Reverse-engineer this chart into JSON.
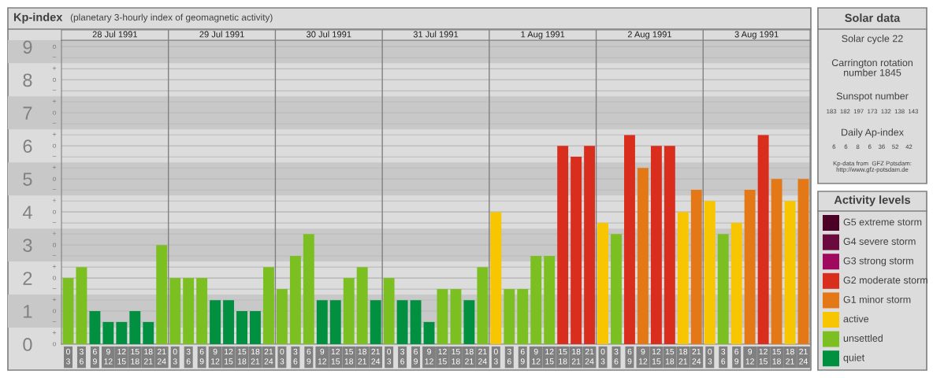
{
  "chart_data": [
    {
      "type": "bar",
      "title": "Kp-index",
      "subtitle": "(planetary 3-hourly index of geomagnetic activity)",
      "categories": [
        "0\n3",
        "3\n6",
        "6\n9",
        "9\n12",
        "12\n15",
        "15\n18",
        "18\n21",
        "21\n24",
        "0\n3",
        "3\n6",
        "6\n9",
        "9\n12",
        "12\n15",
        "15\n18",
        "18\n21",
        "21\n24",
        "0\n3",
        "3\n6",
        "6\n9",
        "9\n12",
        "12\n15",
        "15\n18",
        "18\n21",
        "21\n24",
        "0\n3",
        "3\n6",
        "6\n9",
        "9\n12",
        "12\n15",
        "15\n18",
        "18\n21",
        "21\n24",
        "0\n3",
        "3\n6",
        "6\n9",
        "9\n12",
        "12\n15",
        "15\n18",
        "18\n21",
        "21\n24",
        "0\n3",
        "3\n6",
        "6\n9",
        "9\n12",
        "12\n15",
        "15\n18",
        "18\n21",
        "21\n24",
        "0\n3",
        "3\n6",
        "6\n9",
        "9\n12",
        "12\n15",
        "15\n18",
        "18\n21",
        "21\n24"
      ],
      "series": [
        {
          "name": "G5 extreme storm",
          "color": "#4d0026",
          "values": [
            null,
            null,
            null,
            null,
            null,
            null,
            null,
            null,
            null,
            null,
            null,
            null,
            null,
            null,
            null,
            null,
            null,
            null,
            null,
            null,
            null,
            null,
            null,
            null,
            null,
            null,
            null,
            null,
            null,
            null,
            null,
            null,
            null,
            null,
            null,
            null,
            null,
            null,
            null,
            null,
            null,
            null,
            null,
            null,
            null,
            null,
            null,
            null,
            null,
            null,
            null,
            null,
            null,
            null,
            null,
            null
          ]
        },
        {
          "name": "G4 severe storm",
          "color": "#6b0a3d",
          "values": [
            null,
            null,
            null,
            null,
            null,
            null,
            null,
            null,
            null,
            null,
            null,
            null,
            null,
            null,
            null,
            null,
            null,
            null,
            null,
            null,
            null,
            null,
            null,
            null,
            null,
            null,
            null,
            null,
            null,
            null,
            null,
            null,
            null,
            null,
            null,
            null,
            null,
            null,
            null,
            null,
            null,
            null,
            null,
            null,
            null,
            null,
            null,
            null,
            null,
            null,
            null,
            null,
            null,
            null,
            null,
            null
          ]
        },
        {
          "name": "G3 strong storm",
          "color": "#a00a5e",
          "values": [
            null,
            null,
            null,
            null,
            null,
            null,
            null,
            null,
            null,
            null,
            null,
            null,
            null,
            null,
            null,
            null,
            null,
            null,
            null,
            null,
            null,
            null,
            null,
            null,
            null,
            null,
            null,
            null,
            null,
            null,
            null,
            null,
            null,
            null,
            null,
            null,
            null,
            null,
            null,
            null,
            null,
            null,
            null,
            null,
            null,
            null,
            null,
            null,
            null,
            null,
            null,
            null,
            null,
            null,
            null,
            null
          ]
        },
        {
          "name": "G2 moderate storm",
          "color": "#d92d1e",
          "values": [
            null,
            null,
            null,
            null,
            null,
            null,
            null,
            null,
            null,
            null,
            null,
            null,
            null,
            null,
            null,
            null,
            null,
            null,
            null,
            null,
            null,
            null,
            null,
            null,
            null,
            null,
            null,
            null,
            null,
            null,
            null,
            null,
            null,
            null,
            null,
            null,
            null,
            6,
            5.67,
            6,
            null,
            null,
            6.33,
            null,
            6,
            6,
            null,
            null,
            null,
            null,
            null,
            null,
            6.33,
            null,
            null,
            null
          ]
        },
        {
          "name": "G1 minor storm",
          "color": "#e47817",
          "values": [
            null,
            null,
            null,
            null,
            null,
            null,
            null,
            null,
            null,
            null,
            null,
            null,
            null,
            null,
            null,
            null,
            null,
            null,
            null,
            null,
            null,
            null,
            null,
            null,
            null,
            null,
            null,
            null,
            null,
            null,
            null,
            null,
            null,
            null,
            null,
            null,
            null,
            null,
            null,
            null,
            null,
            null,
            null,
            5.33,
            null,
            null,
            null,
            4.67,
            null,
            null,
            null,
            4.67,
            null,
            5,
            null,
            5
          ]
        },
        {
          "name": "active",
          "color": "#f8c600",
          "values": [
            null,
            null,
            null,
            null,
            null,
            null,
            null,
            null,
            null,
            null,
            null,
            null,
            null,
            null,
            null,
            null,
            null,
            null,
            null,
            null,
            null,
            null,
            null,
            null,
            null,
            null,
            null,
            null,
            null,
            null,
            null,
            null,
            4,
            null,
            null,
            null,
            null,
            null,
            null,
            null,
            3.67,
            null,
            null,
            null,
            null,
            null,
            4,
            null,
            4.33,
            null,
            3.67,
            null,
            null,
            null,
            4.33,
            null
          ]
        },
        {
          "name": "unsettled",
          "color": "#7bbf21",
          "values": [
            2,
            2.33,
            null,
            null,
            null,
            null,
            null,
            3,
            2,
            2,
            2,
            null,
            null,
            null,
            null,
            2.33,
            1.67,
            2.67,
            3.33,
            null,
            null,
            2,
            2.33,
            null,
            2,
            null,
            null,
            null,
            1.67,
            1.67,
            null,
            2.33,
            null,
            1.67,
            1.67,
            2.67,
            2.67,
            null,
            null,
            null,
            null,
            3.33,
            null,
            null,
            null,
            null,
            null,
            null,
            null,
            3.33,
            null,
            null,
            null,
            null,
            null,
            null
          ]
        },
        {
          "name": "quiet",
          "color": "#009040",
          "values": [
            null,
            null,
            1,
            0.67,
            0.67,
            1,
            0.67,
            null,
            null,
            null,
            null,
            1.33,
            1.33,
            1,
            1,
            null,
            null,
            null,
            null,
            1.33,
            1.33,
            null,
            null,
            1.33,
            null,
            1.33,
            1.33,
            0.67,
            null,
            null,
            1.33,
            null,
            null,
            null,
            null,
            null,
            null,
            null,
            null,
            null,
            null,
            null,
            null,
            null,
            null,
            null,
            null,
            null,
            null,
            null,
            null,
            null,
            null,
            null,
            null,
            null
          ]
        }
      ],
      "ylim": [
        0,
        9.2
      ],
      "yticks": [
        0,
        1,
        2,
        3,
        4,
        5,
        6,
        7,
        8,
        9
      ],
      "bands": [
        {
          "axis": "y",
          "from": 0.5,
          "to": 1.5,
          "color": "#c8c8c8"
        },
        {
          "axis": "y",
          "from": 2.5,
          "to": 3.5,
          "color": "#c8c8c8"
        },
        {
          "axis": "y",
          "from": 4.5,
          "to": 5.5,
          "color": "#c8c8c8"
        },
        {
          "axis": "y",
          "from": 6.5,
          "to": 7.5,
          "color": "#c8c8c8"
        },
        {
          "axis": "y",
          "from": 8.5,
          "to": 9.2,
          "color": "#c8c8c8"
        }
      ],
      "annotations": [
        "28 Jul 1991",
        "29 Jul 1991",
        "30 Jul 1991",
        "31 Jul 1991",
        "1 Aug 1991",
        "2 Aug 1991",
        "3 Aug 1991"
      ],
      "grid": "y",
      "legend": "right",
      "legend_title": "Activity levels"
    },
    {
      "type": "other",
      "annotations": [
        "o",
        "+",
        "−",
        "o",
        "+",
        "−",
        "o",
        "+",
        "−",
        "o",
        "+",
        "−",
        "o",
        "+",
        "−",
        "o",
        "+",
        "−",
        "o",
        "+",
        "−",
        "o",
        "+",
        "−",
        "o",
        "+",
        "−",
        "o"
      ]
    },
    {
      "type": "other",
      "title": "Solar data",
      "annotations": [
        "Solar cycle 22",
        "Carrington rotation\nnumber 1845",
        "Sunspot number",
        "183  182  197  173  132  138  143",
        "Daily Ap-index",
        "6     6     8     6    36    52    42",
        "Kp-data from  GFZ Potsdam:\nhttp://www.gfz-potsdam.de"
      ]
    }
  ]
}
